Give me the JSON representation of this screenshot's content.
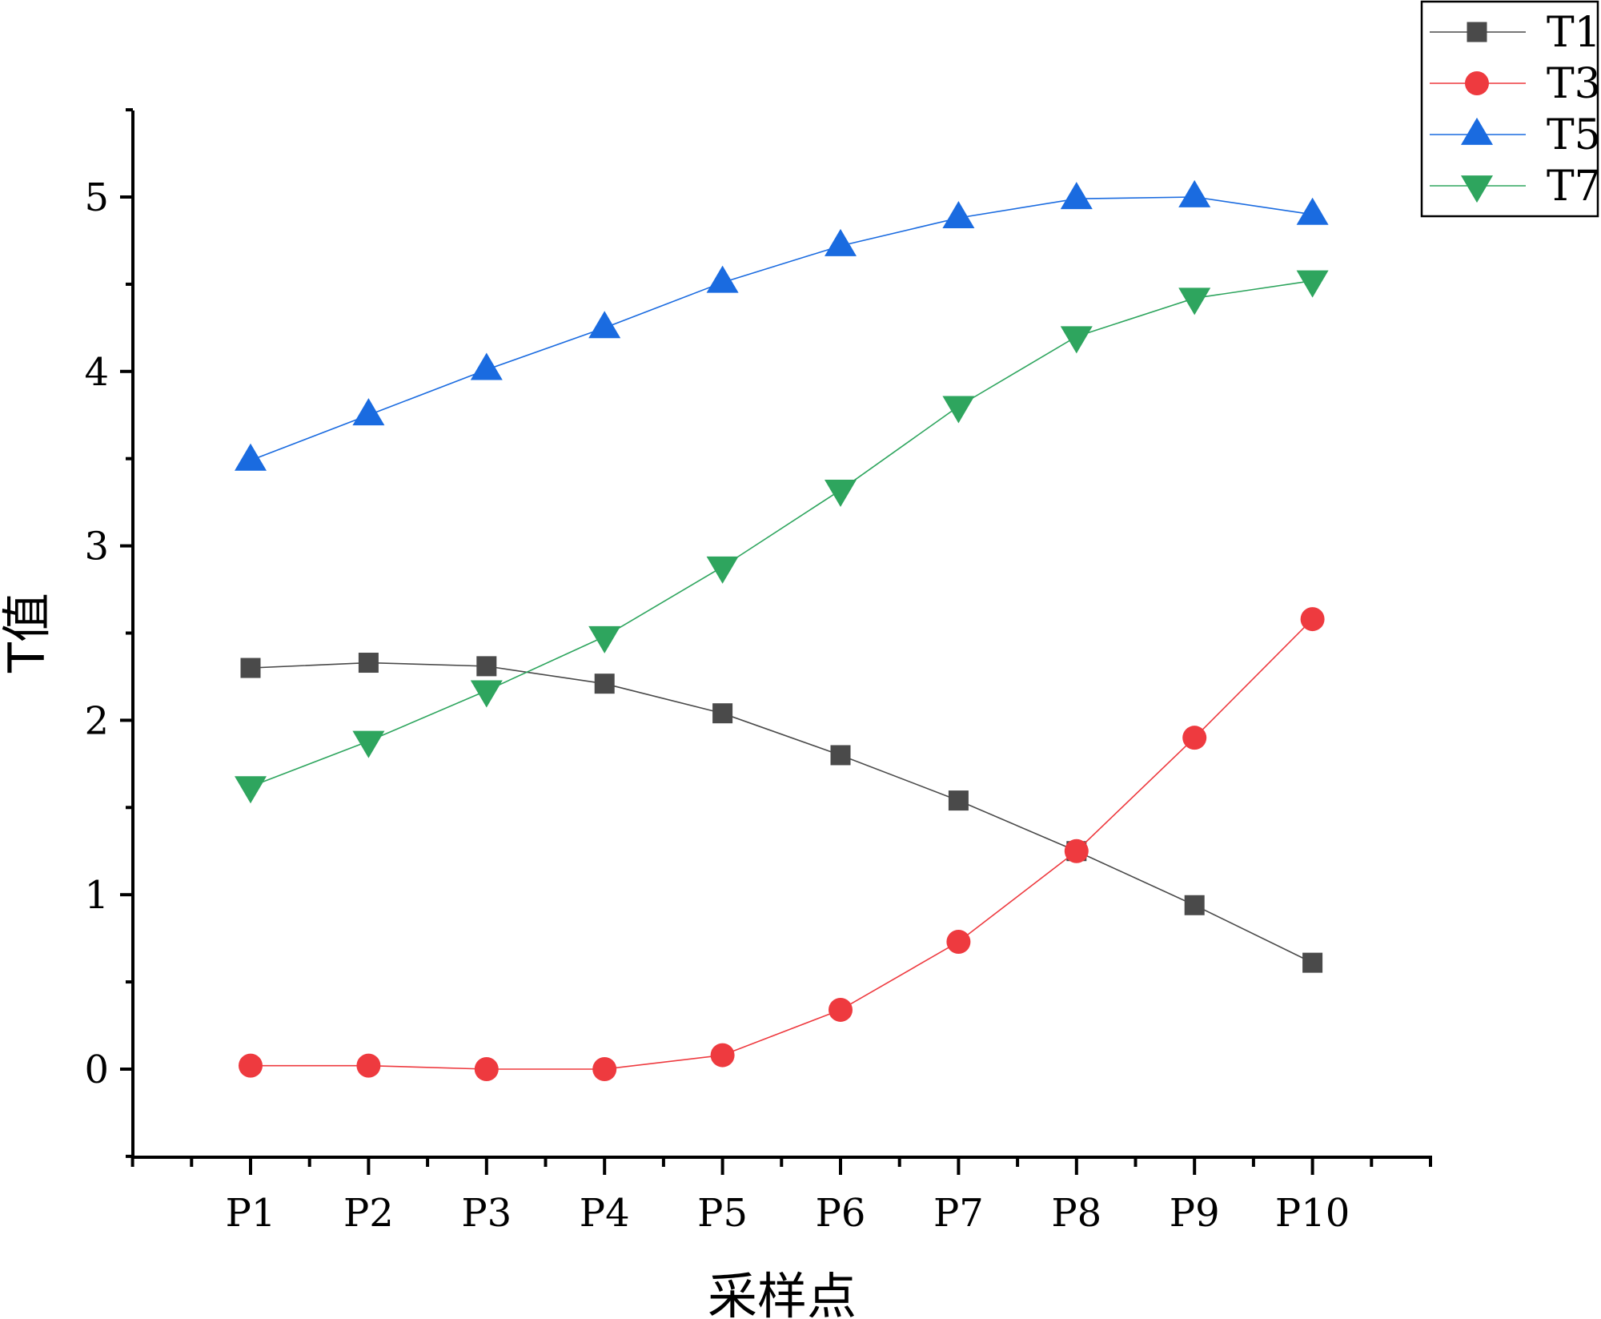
{
  "chart_data": {
    "type": "line",
    "categories": [
      "P1",
      "P2",
      "P3",
      "P4",
      "P5",
      "P6",
      "P7",
      "P8",
      "P9",
      "P10"
    ],
    "xlabel": "采样点",
    "ylabel": "T值",
    "ylim": [
      -0.5,
      5.5
    ],
    "yticks": [
      0,
      1,
      2,
      3,
      4,
      5
    ],
    "grid": false,
    "legend_position": "top-right",
    "series": [
      {
        "name": "T1",
        "marker": "square",
        "color": "#4a4a4a",
        "values": [
          2.3,
          2.33,
          2.31,
          2.21,
          2.04,
          1.8,
          1.54,
          1.25,
          0.94,
          0.61
        ]
      },
      {
        "name": "T3",
        "marker": "circle",
        "color": "#ee3a3f",
        "values": [
          0.02,
          0.02,
          0.0,
          0.0,
          0.08,
          0.34,
          0.73,
          1.25,
          1.9,
          2.58
        ]
      },
      {
        "name": "T5",
        "marker": "triangle-up",
        "color": "#1a6be0",
        "values": [
          3.49,
          3.75,
          4.01,
          4.25,
          4.51,
          4.72,
          4.88,
          4.99,
          5.0,
          4.9
        ]
      },
      {
        "name": "T7",
        "marker": "triangle-down",
        "color": "#2ea55e",
        "values": [
          1.62,
          1.88,
          2.17,
          2.48,
          2.88,
          3.32,
          3.8,
          4.2,
          4.42,
          4.52
        ]
      }
    ]
  }
}
